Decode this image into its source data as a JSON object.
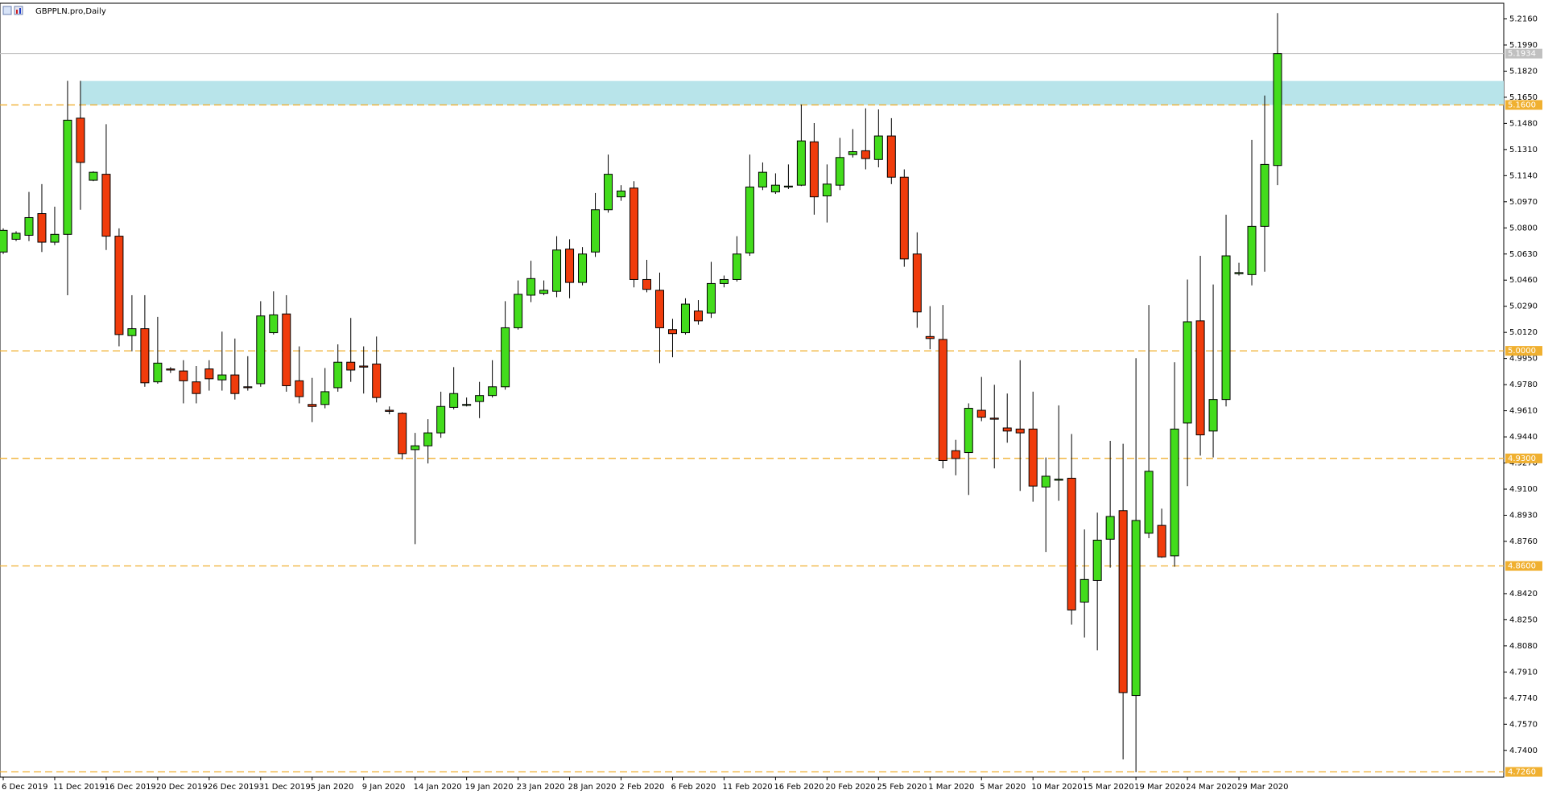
{
  "chart_data": {
    "type": "candlestick",
    "title": "GBPPLN.pro,Daily",
    "up_color": "#43dc1c",
    "down_color": "#f03c0c",
    "level_color": "#f0b030",
    "zone_color": "#b8e4ea",
    "ylim": [
      4.7226,
      5.2262
    ],
    "yticks": [
      {
        "value": 5.216,
        "label": "5.2160"
      },
      {
        "value": 5.199,
        "label": "5.1990"
      },
      {
        "value": 5.182,
        "label": "5.1820"
      },
      {
        "value": 5.165,
        "label": "5.1650"
      },
      {
        "value": 5.148,
        "label": "5.1480"
      },
      {
        "value": 5.131,
        "label": "5.1310"
      },
      {
        "value": 5.114,
        "label": "5.1140"
      },
      {
        "value": 5.097,
        "label": "5.0970"
      },
      {
        "value": 5.08,
        "label": "5.0800"
      },
      {
        "value": 5.063,
        "label": "5.0630"
      },
      {
        "value": 5.046,
        "label": "5.0460"
      },
      {
        "value": 5.029,
        "label": "5.0290"
      },
      {
        "value": 5.012,
        "label": "5.0120"
      },
      {
        "value": 4.995,
        "label": "4.9950"
      },
      {
        "value": 4.978,
        "label": "4.9780"
      },
      {
        "value": 4.961,
        "label": "4.9610"
      },
      {
        "value": 4.944,
        "label": "4.9440"
      },
      {
        "value": 4.927,
        "label": "4.9270"
      },
      {
        "value": 4.91,
        "label": "4.9100"
      },
      {
        "value": 4.893,
        "label": "4.8930"
      },
      {
        "value": 4.876,
        "label": "4.8760"
      },
      {
        "value": 4.842,
        "label": "4.8420"
      },
      {
        "value": 4.825,
        "label": "4.8250"
      },
      {
        "value": 4.808,
        "label": "4.8080"
      },
      {
        "value": 4.791,
        "label": "4.7910"
      },
      {
        "value": 4.774,
        "label": "4.7740"
      },
      {
        "value": 4.757,
        "label": "4.7570"
      },
      {
        "value": 4.74,
        "label": "4.7400"
      }
    ],
    "levels": [
      {
        "value": 5.16,
        "label": "5.1600"
      },
      {
        "value": 5.0,
        "label": "5.0000"
      },
      {
        "value": 4.93,
        "label": "4.9300"
      },
      {
        "value": 4.86,
        "label": "4.8600"
      },
      {
        "value": 4.726,
        "label": "4.7260"
      }
    ],
    "zone": [
      5.16,
      5.1756
    ],
    "current_price": 5.1934,
    "categories": [
      "6 Dec 2019",
      null,
      null,
      null,
      "11 Dec 2019",
      null,
      null,
      null,
      "16 Dec 2019",
      null,
      null,
      null,
      "20 Dec 2019",
      null,
      null,
      null,
      "26 Dec 2019",
      null,
      null,
      null,
      "31 Dec 2019",
      null,
      null,
      null,
      "5 Jan 2020",
      null,
      null,
      null,
      "9 Jan 2020",
      null,
      null,
      null,
      "14 Jan 2020",
      null,
      null,
      null,
      "19 Jan 2020",
      null,
      null,
      null,
      "23 Jan 2020",
      null,
      null,
      null,
      "28 Jan 2020",
      null,
      null,
      null,
      "2 Feb 2020",
      null,
      null,
      null,
      "6 Feb 2020",
      null,
      null,
      null,
      "11 Feb 2020",
      null,
      null,
      null,
      "16 Feb 2020",
      null,
      null,
      null,
      "20 Feb 2020",
      null,
      null,
      null,
      "25 Feb 2020",
      null,
      null,
      null,
      "1 Mar 2020",
      null,
      null,
      null,
      "5 Mar 2020",
      null,
      null,
      null,
      "10 Mar 2020",
      null,
      null,
      null,
      "15 Mar 2020",
      null,
      null,
      null,
      "19 Mar 2020",
      null,
      null,
      null,
      "24 Mar 2020",
      null,
      null,
      null,
      "29 Mar 2020",
      null,
      null,
      null
    ],
    "open": [
      5.0643,
      5.0726,
      5.0752,
      5.0893,
      5.0707,
      5.0758,
      5.1514,
      5.111,
      5.1149,
      5.0746,
      5.0099,
      5.0144,
      4.9798,
      4.9882,
      4.9869,
      4.9798,
      4.9882,
      4.9811,
      4.9843,
      4.9766,
      4.9786,
      5.0118,
      5.024,
      4.9805,
      4.9651,
      4.9651,
      4.976,
      4.9926,
      4.9901,
      4.9914,
      4.9613,
      4.9594,
      4.9357,
      4.9382,
      4.9466,
      4.9632,
      4.9645,
      4.967,
      4.9709,
      4.9766,
      5.015,
      5.0362,
      5.0374,
      5.0387,
      5.0662,
      5.0445,
      5.0643,
      5.0918,
      5.1002,
      5.1059,
      5.0464,
      5.0394,
      5.0138,
      5.0118,
      5.0259,
      5.0246,
      5.0438,
      5.0464,
      5.0637,
      5.1066,
      5.1034,
      5.1066,
      5.1078,
      5.136,
      5.1008,
      5.1078,
      5.1277,
      5.1302,
      5.1245,
      5.1398,
      5.113,
      5.063,
      5.0093,
      5.0074,
      4.935,
      4.9338,
      4.9613,
      4.9562,
      4.9498,
      4.9491,
      4.9491,
      4.9114,
      4.9158,
      4.9171,
      4.8365,
      4.8506,
      4.8774,
      4.896,
      4.7757,
      4.8813,
      4.8864,
      4.8666,
      4.953,
      5.0195,
      4.9478,
      4.9683,
      5.0502,
      5.0496,
      5.081,
      5.1206
    ],
    "high": [
      5.0797,
      5.0778,
      5.1034,
      5.1085,
      5.0938,
      5.1757,
      5.1757,
      5.1168,
      5.1475,
      5.0797,
      5.0362,
      5.0362,
      5.0221,
      4.9894,
      4.9939,
      4.9901,
      4.9939,
      5.0125,
      5.008,
      4.9965,
      5.0323,
      5.0387,
      5.0362,
      5.0029,
      4.9824,
      4.9888,
      5.0042,
      5.0214,
      5.0029,
      5.0093,
      4.9638,
      4.96,
      4.9466,
      4.9555,
      4.9734,
      4.9894,
      4.9696,
      4.9798,
      4.9939,
      5.0323,
      5.0458,
      5.0586,
      5.0458,
      5.0746,
      5.0726,
      5.0675,
      5.1027,
      5.1277,
      5.1078,
      5.1104,
      5.0592,
      5.0509,
      5.0208,
      5.0342,
      5.033,
      5.0579,
      5.049,
      5.0746,
      5.1277,
      5.1226,
      5.1155,
      5.1213,
      5.1603,
      5.1482,
      5.1213,
      5.1386,
      5.1443,
      5.1578,
      5.1571,
      5.1514,
      5.1181,
      5.0771,
      5.0291,
      5.0298,
      4.9421,
      4.9658,
      4.983,
      4.9779,
      4.9722,
      4.9939,
      4.9734,
      4.9306,
      4.9645,
      4.9459,
      4.8838,
      4.8947,
      4.9414,
      4.9395,
      4.9952,
      5.0298,
      4.8973,
      4.9926,
      5.0464,
      5.0618,
      5.0432,
      5.0886,
      5.0573,
      5.1373,
      5.1661,
      5.2198
    ],
    "low": [
      5.063,
      5.0714,
      5.0714,
      5.0643,
      5.0688,
      5.0362,
      5.0918,
      5.1104,
      5.0656,
      5.0029,
      4.9997,
      4.9766,
      4.9786,
      4.9856,
      4.9658,
      4.9658,
      4.9741,
      4.9741,
      4.9683,
      4.9741,
      4.9766,
      5.0106,
      4.9734,
      4.9658,
      4.9536,
      4.9626,
      4.9734,
      4.9798,
      4.9722,
      4.9664,
      4.9587,
      4.9293,
      4.8742,
      4.9267,
      4.9434,
      4.9619,
      4.9638,
      4.9562,
      4.9696,
      4.9747,
      5.0138,
      5.0317,
      5.0362,
      5.0349,
      5.0342,
      5.0426,
      5.0611,
      5.0899,
      5.0976,
      5.0413,
      5.0381,
      4.992,
      4.9958,
      5.0106,
      5.017,
      5.0214,
      5.0413,
      5.0451,
      5.0618,
      5.1046,
      5.1021,
      5.1053,
      5.1072,
      5.0886,
      5.0835,
      5.1046,
      5.1258,
      5.1181,
      5.1194,
      5.1085,
      5.0547,
      5.015,
      5.001,
      4.9235,
      4.919,
      4.9062,
      4.9542,
      4.9235,
      4.9402,
      4.9088,
      4.9018,
      4.8691,
      4.9024,
      4.8218,
      4.8134,
      4.8051,
      4.8589,
      4.7341,
      4.7258,
      4.8781,
      4.8653,
      4.8595,
      4.912,
      4.9318,
      4.9306,
      4.9638,
      5.049,
      5.0426,
      5.0515,
      5.1078
    ],
    "close": [
      5.0784,
      5.0765,
      5.0867,
      5.0707,
      5.0758,
      5.1501,
      5.1226,
      5.1162,
      5.0746,
      5.0106,
      5.0144,
      4.9792,
      4.992,
      4.9875,
      4.9805,
      4.9722,
      4.9818,
      4.9843,
      4.9722,
      4.976,
      5.0227,
      5.0234,
      4.9773,
      4.9702,
      4.9638,
      4.9734,
      4.9926,
      4.9875,
      4.9894,
      4.9696,
      4.9606,
      4.9331,
      4.9382,
      4.9466,
      4.9638,
      4.9722,
      4.9651,
      4.9709,
      4.9766,
      5.015,
      5.0368,
      5.047,
      5.0394,
      5.0656,
      5.0445,
      5.063,
      5.0918,
      5.1149,
      5.104,
      5.0464,
      5.04,
      5.015,
      5.0112,
      5.0304,
      5.0195,
      5.0438,
      5.0464,
      5.063,
      5.1066,
      5.1162,
      5.1078,
      5.1072,
      5.1366,
      5.1002,
      5.1085,
      5.1258,
      5.1296,
      5.1251,
      5.1398,
      5.113,
      5.0598,
      5.0253,
      5.008,
      4.9286,
      4.9299,
      4.9626,
      4.9568,
      4.9555,
      4.9478,
      4.9466,
      4.912,
      4.9184,
      4.9165,
      4.8314,
      4.8512,
      4.8768,
      4.8922,
      4.7776,
      4.8896,
      4.9216,
      4.8659,
      4.9491,
      5.0189,
      4.9453,
      4.9683,
      5.0618,
      5.0509,
      5.081,
      5.1213,
      5.1934
    ]
  }
}
